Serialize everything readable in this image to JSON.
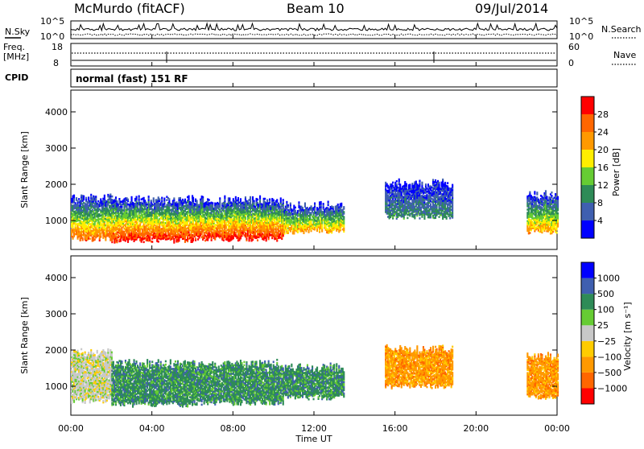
{
  "header": {
    "station": "McMurdo (fitACF)",
    "beam": "Beam 10",
    "date": "09/Jul/2014"
  },
  "top_panels": {
    "nsky_label": "N.Sky",
    "nsearch_label": "N.Search",
    "noise_ticks_left": [
      "10^5",
      "10^0"
    ],
    "noise_ticks_right": [
      "10^5",
      "10^0"
    ],
    "freq_label_1": "Freq.",
    "freq_label_2": "[MHz]",
    "freq_ticks": [
      "18",
      "8"
    ],
    "nave_label": "Nave",
    "nave_ticks": [
      "60",
      "0"
    ],
    "cpid_label": "CPID",
    "cpid_value": "normal (fast) 151 RF"
  },
  "colors": {
    "power_scale": [
      "#0000ff",
      "#3f5fb0",
      "#2e8b57",
      "#66cc33",
      "#ffee00",
      "#ff9900",
      "#ff6600",
      "#ff0000"
    ],
    "velocity_scale": [
      "#ff0000",
      "#ff6600",
      "#ff9900",
      "#ffcc00",
      "#c8c8c8",
      "#66cc33",
      "#2e8b57",
      "#3f5fb0",
      "#0000ff"
    ]
  },
  "chart_data": [
    {
      "type": "heatmap",
      "panel": "power",
      "ylabel": "Slant Range [km]",
      "y_ticks": [
        "1000",
        "2000",
        "3000",
        "4000"
      ],
      "ylim": [
        200,
        4600
      ],
      "colorbar_label": "Power [dB]",
      "colorbar_ticks": [
        "4",
        "8",
        "12",
        "16",
        "20",
        "24",
        "28"
      ],
      "bands": [
        {
          "start_h": 0.0,
          "end_h": 2.0,
          "low_km": 500,
          "high_km": 1600,
          "core_db": 24
        },
        {
          "start_h": 2.0,
          "end_h": 6.0,
          "low_km": 450,
          "high_km": 1550,
          "core_db": 28
        },
        {
          "start_h": 6.0,
          "end_h": 10.5,
          "low_km": 500,
          "high_km": 1550,
          "core_db": 28
        },
        {
          "start_h": 10.5,
          "end_h": 13.5,
          "low_km": 700,
          "high_km": 1400,
          "core_db": 20
        },
        {
          "start_h": 15.5,
          "end_h": 18.8,
          "low_km": 1100,
          "high_km": 2000,
          "core_db": 8
        },
        {
          "start_h": 22.5,
          "end_h": 24.0,
          "low_km": 700,
          "high_km": 1700,
          "core_db": 20
        }
      ]
    },
    {
      "type": "heatmap",
      "panel": "velocity",
      "ylabel": "Slant Range [km]",
      "y_ticks": [
        "1000",
        "2000",
        "3000",
        "4000"
      ],
      "ylim": [
        200,
        4600
      ],
      "xlabel": "Time UT",
      "x_ticks": [
        "00:00",
        "04:00",
        "08:00",
        "12:00",
        "16:00",
        "20:00",
        "00:00"
      ],
      "colorbar_label": "Velocity [m s⁻¹]",
      "colorbar_ticks": [
        "1000",
        "500",
        "100",
        "25",
        "−25",
        "−100",
        "−500",
        "−1000"
      ],
      "bands": [
        {
          "start_h": 0.0,
          "end_h": 2.0,
          "low_km": 600,
          "high_km": 1900,
          "core_ms": 25
        },
        {
          "start_h": 2.0,
          "end_h": 6.0,
          "low_km": 500,
          "high_km": 1600,
          "core_ms": 100
        },
        {
          "start_h": 6.0,
          "end_h": 10.5,
          "low_km": 550,
          "high_km": 1600,
          "core_ms": 100
        },
        {
          "start_h": 10.5,
          "end_h": 13.5,
          "low_km": 700,
          "high_km": 1500,
          "core_ms": 100
        },
        {
          "start_h": 15.5,
          "end_h": 18.8,
          "low_km": 1000,
          "high_km": 2000,
          "core_ms": -100
        },
        {
          "start_h": 22.5,
          "end_h": 24.0,
          "low_km": 700,
          "high_km": 1800,
          "core_ms": -100
        }
      ]
    }
  ]
}
